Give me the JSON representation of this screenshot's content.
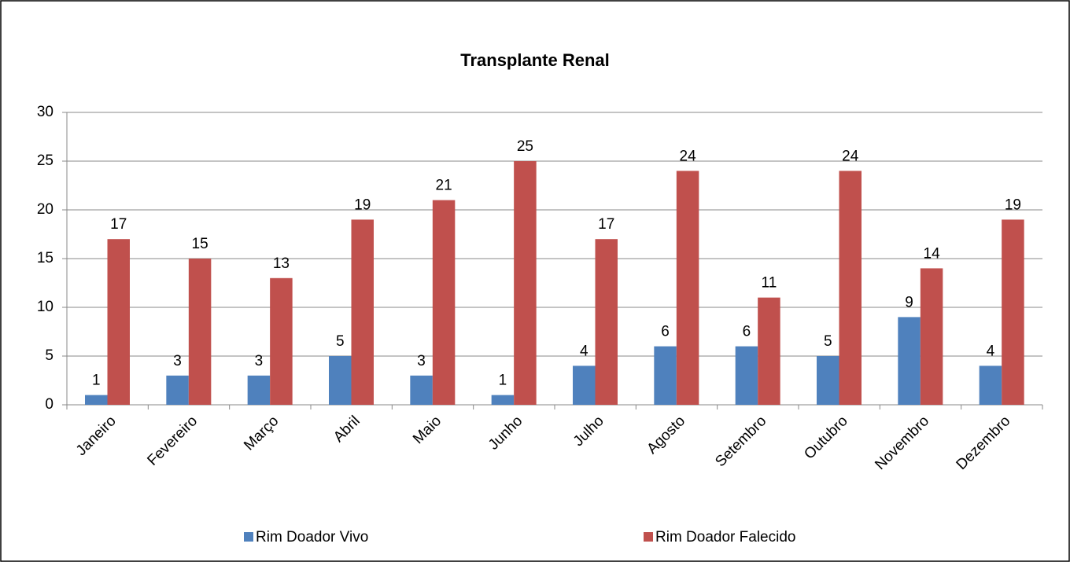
{
  "chart_data": {
    "type": "bar",
    "title": "Transplante Renal",
    "categories": [
      "Janeiro",
      "Fevereiro",
      "Março",
      "Abril",
      "Maio",
      "Junho",
      "Julho",
      "Agosto",
      "Setembro",
      "Outubro",
      "Novembro",
      "Dezembro"
    ],
    "series": [
      {
        "name": "Rim Doador Vivo",
        "color": "#4f81bd",
        "values": [
          1,
          3,
          3,
          5,
          3,
          1,
          4,
          6,
          6,
          5,
          9,
          4
        ]
      },
      {
        "name": "Rim Doador Falecido",
        "color": "#c0504d",
        "values": [
          17,
          15,
          13,
          19,
          21,
          25,
          17,
          24,
          11,
          24,
          14,
          19
        ]
      }
    ],
    "ylim": [
      0,
      30
    ],
    "yticks": [
      0,
      5,
      10,
      15,
      20,
      25,
      30
    ],
    "grid": true,
    "legend": "bottom"
  }
}
